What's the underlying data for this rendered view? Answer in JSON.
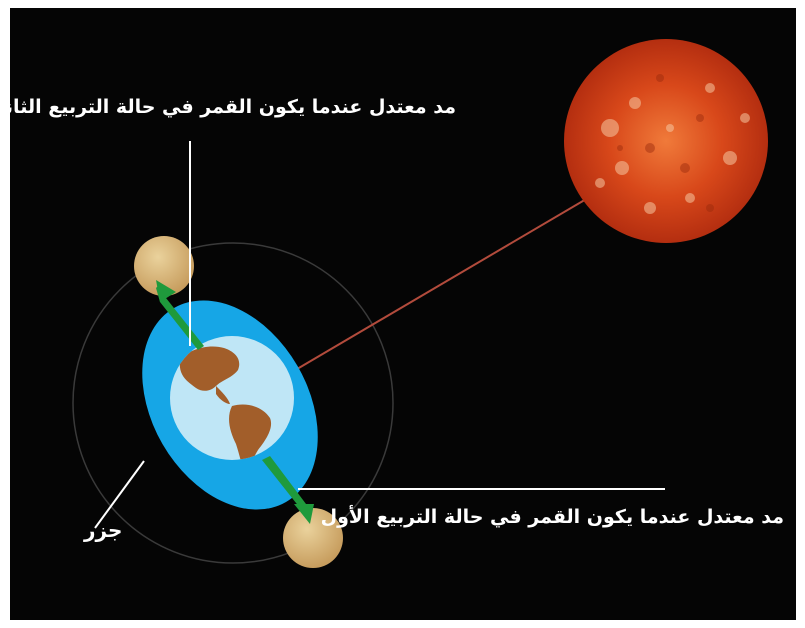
{
  "labels": {
    "top": "مد معتدل عندما يكون القمر في حالة التربيع الثاني",
    "bottom": "مد معتدل عندما يكون القمر في حالة التربيع الأول",
    "neap": "جزر"
  },
  "colors": {
    "background": "#050505",
    "tidal_bulge": "#16a6e6",
    "earth_ocean": "#bfe6f6",
    "land": "#a25e2a",
    "moon": "#d8ba84",
    "sun": "#d8481a",
    "arrow": "#1f9a3c",
    "orbit": "#3a3a3a",
    "sun_line": "#b24b3c",
    "leader_line": "#ffffff"
  }
}
